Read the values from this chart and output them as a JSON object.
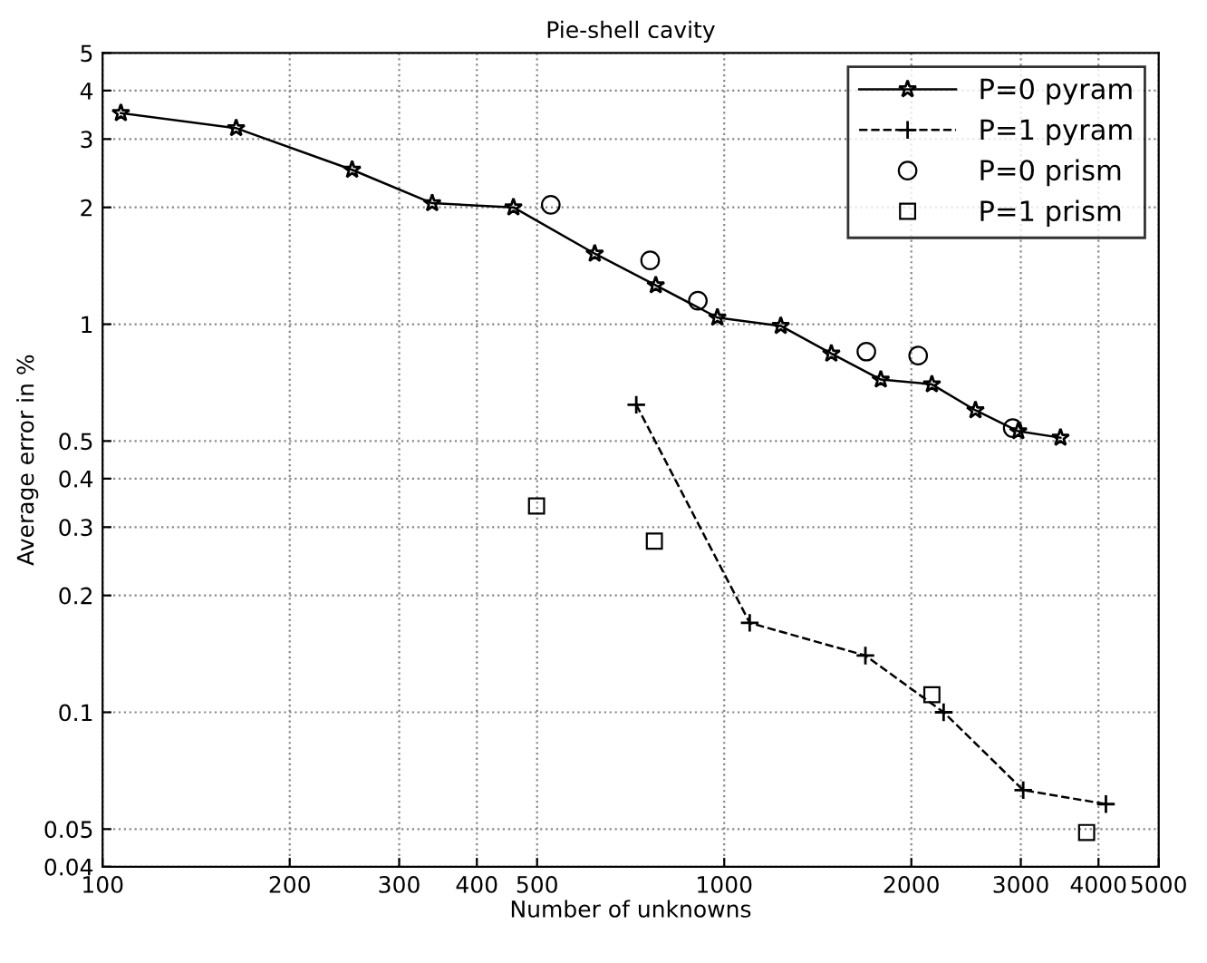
{
  "chart_data": {
    "type": "line",
    "title": "Pie-shell cavity",
    "xlabel": "Number of unknowns",
    "ylabel": "Average error in %",
    "log": "xy",
    "grid": true,
    "legend": "top right",
    "xlim": [
      100,
      5000
    ],
    "ylim": [
      0.04,
      5
    ],
    "xticks": [
      100,
      200,
      300,
      400,
      500,
      1000,
      2000,
      3000,
      4000,
      5000
    ],
    "yticks": [
      0.04,
      0.05,
      0.1,
      0.2,
      0.3,
      0.4,
      0.5,
      1,
      2,
      3,
      4,
      5
    ],
    "series": [
      {
        "name": "P=0 pyram",
        "color": "#000000",
        "marker": "star",
        "line_style": "solid",
        "x": [
          107,
          164,
          252,
          339,
          458,
          619,
          776,
          975,
          1233,
          1487,
          1786,
          2158,
          2536,
          2972,
          3475
        ],
        "values": [
          3.5,
          3.2,
          2.5,
          2.05,
          2.0,
          1.52,
          1.26,
          1.04,
          0.99,
          0.84,
          0.72,
          0.7,
          0.6,
          0.53,
          0.51
        ]
      },
      {
        "name": "P=1 pyram",
        "type": "line",
        "color": "#000000",
        "marker": "cross",
        "line_style": "dashed",
        "x": [
          722,
          1099,
          1687,
          2254,
          3027,
          4112
        ],
        "values": [
          0.62,
          0.17,
          0.14,
          0.1,
          0.063,
          0.058
        ]
      },
      {
        "name": "P=0 prism",
        "type": "scatter",
        "color": "#000000",
        "marker": "circle",
        "x": [
          526,
          760,
          907,
          1693,
          2051,
          2911
        ],
        "values": [
          2.03,
          1.46,
          1.15,
          0.85,
          0.83,
          0.54
        ]
      },
      {
        "name": "P=1 prism",
        "type": "scatter",
        "color": "#000000",
        "marker": "square",
        "x": [
          499,
          772,
          2158,
          3828
        ],
        "values": [
          0.34,
          0.276,
          0.111,
          0.049
        ]
      }
    ]
  }
}
